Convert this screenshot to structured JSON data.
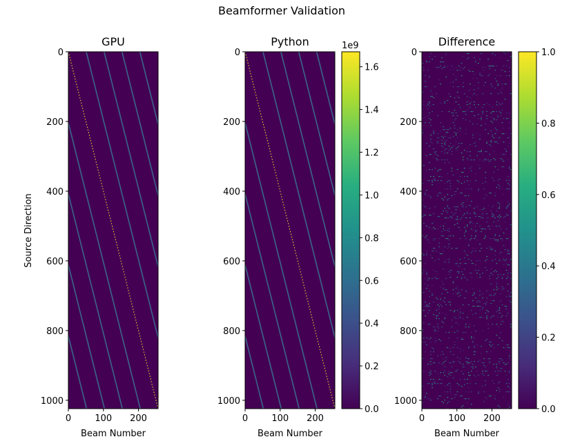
{
  "figure": {
    "suptitle": "Beamformer Validation"
  },
  "chart_data": [
    {
      "type": "heatmap",
      "title": "GPU",
      "xlabel": "Beam Number",
      "ylabel": "Source Direction",
      "xlim": [
        0,
        256
      ],
      "ylim": [
        1024,
        0
      ],
      "xticks": [
        "0",
        "100",
        "200"
      ],
      "yticks": [
        "0",
        "200",
        "400",
        "600",
        "800",
        "1000"
      ],
      "colormap": "viridis",
      "pattern": "diagonal-stripes",
      "main_diagonal": {
        "from": [
          0,
          0
        ],
        "to": [
          256,
          1024
        ]
      },
      "stripe_spacing_beams": 51,
      "colorbar": null
    },
    {
      "type": "heatmap",
      "title": "Python",
      "xlabel": "Beam Number",
      "ylabel": "",
      "xlim": [
        0,
        256
      ],
      "ylim": [
        1024,
        0
      ],
      "xticks": [
        "0",
        "100",
        "200"
      ],
      "yticks": [
        "0",
        "200",
        "400",
        "600",
        "800",
        "1000"
      ],
      "colormap": "viridis",
      "pattern": "diagonal-stripes",
      "main_diagonal": {
        "from": [
          0,
          0
        ],
        "to": [
          256,
          1024
        ]
      },
      "stripe_spacing_beams": 51,
      "colorbar": {
        "range": [
          0,
          1.67
        ],
        "offset_text": "1e9",
        "ticks": [
          "0.0",
          "0.2",
          "0.4",
          "0.6",
          "0.8",
          "1.0",
          "1.2",
          "1.4",
          "1.6"
        ]
      }
    },
    {
      "type": "heatmap",
      "title": "Difference",
      "xlabel": "Beam Number",
      "ylabel": "",
      "xlim": [
        0,
        256
      ],
      "ylim": [
        1024,
        0
      ],
      "xticks": [
        "0",
        "100",
        "200"
      ],
      "yticks": [
        "0",
        "200",
        "400",
        "600",
        "800",
        "1000"
      ],
      "colormap": "viridis",
      "pattern": "sparse-noise",
      "colorbar": {
        "range": [
          0,
          1.0
        ],
        "offset_text": "",
        "ticks": [
          "0.0",
          "0.2",
          "0.4",
          "0.6",
          "0.8",
          "1.0"
        ]
      }
    }
  ],
  "colors": {
    "viridis_low": "#440154",
    "viridis_high": "#fde725",
    "stripe": "#3b6c8c",
    "diagonal": "#fde725"
  }
}
